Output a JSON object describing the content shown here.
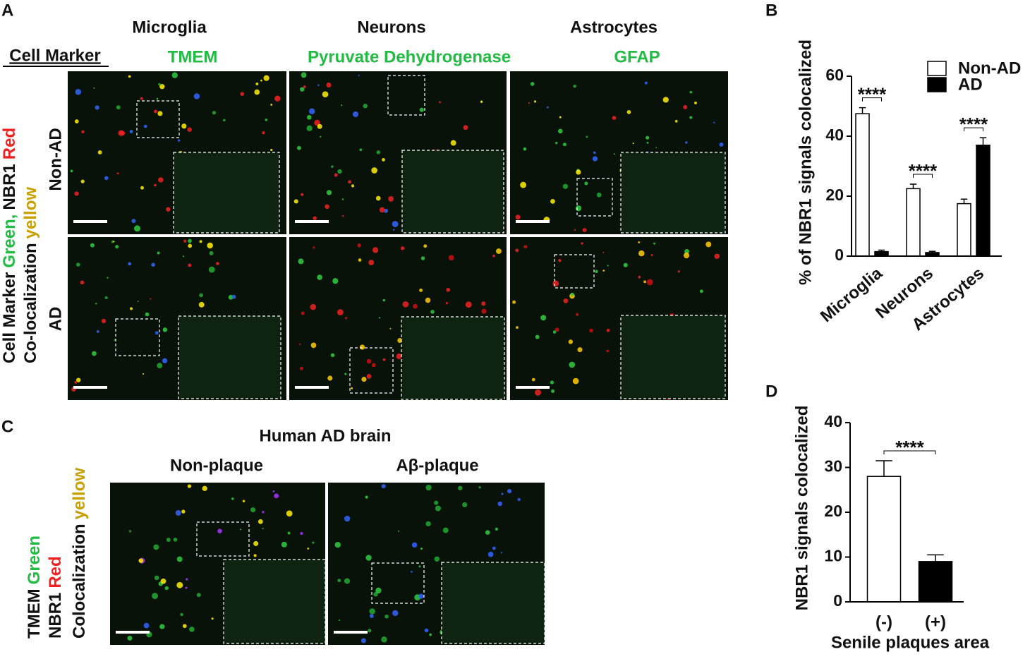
{
  "panel_a": {
    "label": "A",
    "cell_marker_heading": "Cell Marker",
    "columns": [
      {
        "cell": "Microglia",
        "marker": "TMEM"
      },
      {
        "cell": "Neurons",
        "marker": "Pyruvate Dehydrogenase"
      },
      {
        "cell": "Astrocytes",
        "marker": "GFAP"
      }
    ],
    "rows": [
      "Non-AD",
      "AD"
    ],
    "side_label": {
      "line1": [
        "Cell Marker",
        "Green,",
        "NBR1",
        "Red"
      ],
      "line2": [
        "Co-localization",
        "yellow"
      ]
    }
  },
  "panel_c": {
    "label": "C",
    "title": "Human AD brain",
    "columns": [
      "Non-plaque",
      "Aβ-plaque"
    ],
    "side_label": [
      [
        "TMEM",
        "Green"
      ],
      [
        "NBR1",
        "Red"
      ],
      [
        "Colocalization",
        "yellow"
      ]
    ]
  },
  "chart_data": [
    {
      "panel": "B",
      "type": "bar",
      "ylabel": "% of NBR1 signals colocalized",
      "categories": [
        "Microglia",
        "Neurons",
        "Astrocytes"
      ],
      "series": [
        {
          "name": "Non-AD",
          "color": "#ffffff",
          "values": [
            47.5,
            22.5,
            17.5
          ],
          "errors": [
            2,
            1.5,
            1.5
          ]
        },
        {
          "name": "AD",
          "color": "#000000",
          "values": [
            1.5,
            1.2,
            37
          ],
          "errors": [
            0.5,
            0.4,
            2.5
          ]
        }
      ],
      "ylim": [
        0,
        60
      ],
      "yticks": [
        0,
        20,
        40,
        60
      ],
      "significance": [
        "****",
        "****",
        "****"
      ],
      "legend": "upper right"
    },
    {
      "panel": "D",
      "type": "bar",
      "ylabel": "NBR1 signals colocalized",
      "xlabel": "Senile plaques area",
      "categories": [
        "(-)",
        "(+)"
      ],
      "values": [
        28,
        9
      ],
      "errors": [
        3.5,
        1.5
      ],
      "colors": [
        "#ffffff",
        "#000000"
      ],
      "ylim": [
        0,
        40
      ],
      "yticks": [
        0,
        10,
        20,
        30,
        40
      ],
      "significance": [
        "****"
      ]
    }
  ]
}
